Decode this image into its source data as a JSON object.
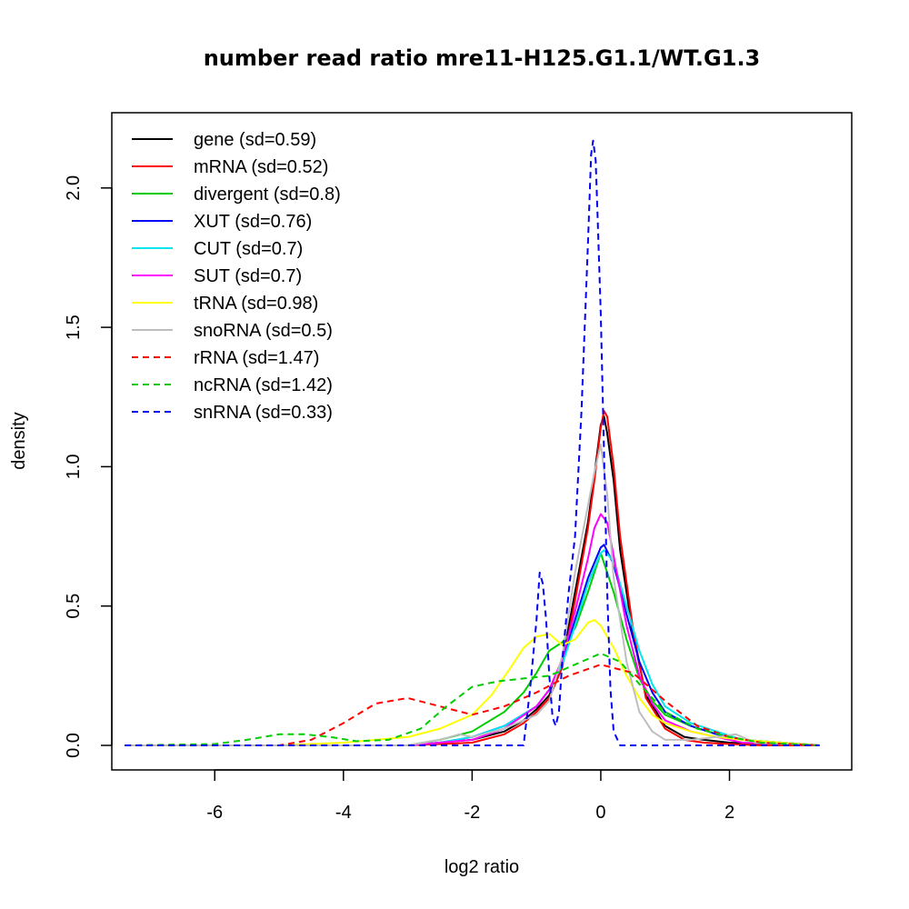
{
  "chart_data": {
    "type": "line",
    "title": "number read ratio mre11-H125.G1.1/WT.G1.3",
    "xlabel": "log2 ratio",
    "ylabel": "density",
    "xlim": [
      -7.6,
      3.9
    ],
    "ylim": [
      -0.088,
      2.27
    ],
    "xticks": [
      -6,
      -4,
      -2,
      0,
      2
    ],
    "xtick_labels": [
      "-6",
      "-4",
      "-2",
      "0",
      "2"
    ],
    "yticks": [
      0.0,
      0.5,
      1.0,
      1.5,
      2.0
    ],
    "ytick_labels": [
      "0.0",
      "0.5",
      "1.0",
      "1.5",
      "2.0"
    ],
    "legend_position": "top-left",
    "series": [
      {
        "name": "gene (sd=0.59)",
        "color": "#000000",
        "dashed": false,
        "x": [
          -7.4,
          -3.0,
          -2.0,
          -1.5,
          -1.2,
          -1.0,
          -0.8,
          -0.6,
          -0.4,
          -0.2,
          -0.1,
          0.0,
          0.05,
          0.1,
          0.2,
          0.3,
          0.5,
          0.7,
          1.0,
          1.3,
          1.6,
          2.0,
          2.5,
          3.4
        ],
        "y": [
          0.0,
          0.0,
          0.02,
          0.05,
          0.09,
          0.13,
          0.18,
          0.3,
          0.55,
          0.8,
          0.97,
          1.15,
          1.18,
          1.12,
          0.95,
          0.7,
          0.4,
          0.18,
          0.07,
          0.03,
          0.02,
          0.01,
          0.005,
          0.0
        ]
      },
      {
        "name": "mRNA (sd=0.52)",
        "color": "#ff0000",
        "dashed": false,
        "x": [
          -7.4,
          -3.0,
          -2.0,
          -1.5,
          -1.2,
          -1.0,
          -0.8,
          -0.6,
          -0.4,
          -0.2,
          -0.1,
          0.0,
          0.05,
          0.1,
          0.2,
          0.3,
          0.5,
          0.7,
          1.0,
          1.3,
          1.6,
          2.0,
          2.5,
          3.4
        ],
        "y": [
          0.0,
          0.0,
          0.01,
          0.04,
          0.08,
          0.12,
          0.17,
          0.28,
          0.52,
          0.78,
          0.95,
          1.14,
          1.2,
          1.18,
          1.0,
          0.75,
          0.42,
          0.17,
          0.06,
          0.02,
          0.01,
          0.005,
          0.0,
          0.0
        ]
      },
      {
        "name": "divergent (sd=0.8)",
        "color": "#00cd00",
        "dashed": false,
        "x": [
          -7.4,
          -3.0,
          -2.5,
          -2.0,
          -1.5,
          -1.2,
          -1.0,
          -0.8,
          -0.6,
          -0.4,
          -0.2,
          0.0,
          0.2,
          0.4,
          0.6,
          0.8,
          1.0,
          1.4,
          1.8,
          2.2,
          3.4
        ],
        "y": [
          0.0,
          0.0,
          0.02,
          0.05,
          0.12,
          0.19,
          0.26,
          0.34,
          0.37,
          0.42,
          0.55,
          0.69,
          0.55,
          0.38,
          0.24,
          0.16,
          0.11,
          0.07,
          0.04,
          0.02,
          0.0
        ]
      },
      {
        "name": "XUT (sd=0.76)",
        "color": "#0000ff",
        "dashed": false,
        "x": [
          -7.4,
          -3.0,
          -2.5,
          -2.0,
          -1.5,
          -1.0,
          -0.8,
          -0.6,
          -0.4,
          -0.2,
          0.0,
          0.05,
          0.2,
          0.4,
          0.6,
          0.8,
          1.0,
          1.4,
          1.8,
          2.2,
          3.4
        ],
        "y": [
          0.0,
          0.0,
          0.01,
          0.03,
          0.07,
          0.14,
          0.2,
          0.3,
          0.45,
          0.6,
          0.71,
          0.72,
          0.65,
          0.47,
          0.3,
          0.19,
          0.12,
          0.07,
          0.04,
          0.02,
          0.0
        ]
      },
      {
        "name": "CUT (sd=0.7)",
        "color": "#00e5ee",
        "dashed": false,
        "x": [
          -7.4,
          -3.0,
          -2.5,
          -2.0,
          -1.5,
          -1.0,
          -0.8,
          -0.6,
          -0.4,
          -0.2,
          0.0,
          0.05,
          0.2,
          0.4,
          0.6,
          0.8,
          1.0,
          1.4,
          1.8,
          2.2,
          3.4
        ],
        "y": [
          0.0,
          0.0,
          0.01,
          0.03,
          0.07,
          0.14,
          0.2,
          0.29,
          0.43,
          0.58,
          0.69,
          0.7,
          0.66,
          0.5,
          0.34,
          0.22,
          0.14,
          0.08,
          0.05,
          0.02,
          0.0
        ]
      },
      {
        "name": "SUT (sd=0.7)",
        "color": "#ff00ff",
        "dashed": false,
        "x": [
          -7.4,
          -3.0,
          -2.5,
          -2.0,
          -1.5,
          -1.0,
          -0.8,
          -0.6,
          -0.4,
          -0.2,
          -0.1,
          0.0,
          0.1,
          0.2,
          0.4,
          0.6,
          0.8,
          1.0,
          1.4,
          1.8,
          2.2,
          3.4
        ],
        "y": [
          0.0,
          0.0,
          0.01,
          0.02,
          0.06,
          0.14,
          0.2,
          0.31,
          0.48,
          0.67,
          0.78,
          0.83,
          0.8,
          0.68,
          0.43,
          0.25,
          0.15,
          0.09,
          0.05,
          0.03,
          0.01,
          0.0
        ]
      },
      {
        "name": "tRNA (sd=0.98)",
        "color": "#ffff00",
        "dashed": false,
        "x": [
          -7.4,
          -5.0,
          -4.0,
          -3.0,
          -2.5,
          -2.0,
          -1.7,
          -1.4,
          -1.2,
          -1.0,
          -0.8,
          -0.6,
          -0.4,
          -0.2,
          -0.1,
          0.0,
          0.2,
          0.4,
          0.6,
          0.8,
          1.0,
          1.4,
          1.8,
          2.2,
          3.4
        ],
        "y": [
          0.0,
          0.0,
          0.01,
          0.03,
          0.06,
          0.11,
          0.18,
          0.28,
          0.35,
          0.39,
          0.4,
          0.36,
          0.38,
          0.44,
          0.45,
          0.43,
          0.35,
          0.25,
          0.17,
          0.11,
          0.08,
          0.05,
          0.03,
          0.02,
          0.0
        ]
      },
      {
        "name": "snoRNA (sd=0.5)",
        "color": "#bebebe",
        "dashed": false,
        "x": [
          -7.4,
          -3.0,
          -2.5,
          -2.2,
          -2.0,
          -1.5,
          -1.0,
          -0.8,
          -0.6,
          -0.4,
          -0.2,
          -0.1,
          0.0,
          0.1,
          0.2,
          0.4,
          0.6,
          0.8,
          1.0,
          1.4,
          1.8,
          2.1,
          2.4,
          3.4
        ],
        "y": [
          0.0,
          0.0,
          0.02,
          0.04,
          0.03,
          0.06,
          0.11,
          0.16,
          0.32,
          0.62,
          0.86,
          0.98,
          1.08,
          0.9,
          0.6,
          0.3,
          0.12,
          0.05,
          0.02,
          0.02,
          0.03,
          0.04,
          0.01,
          0.0
        ]
      },
      {
        "name": "rRNA (sd=1.47)",
        "color": "#ff0000",
        "dashed": true,
        "x": [
          -7.4,
          -5.0,
          -4.5,
          -4.0,
          -3.5,
          -3.0,
          -2.5,
          -2.0,
          -1.5,
          -1.0,
          -0.5,
          0.0,
          0.5,
          1.0,
          1.5,
          2.0,
          2.5,
          3.4
        ],
        "y": [
          0.0,
          0.0,
          0.02,
          0.08,
          0.15,
          0.17,
          0.14,
          0.11,
          0.14,
          0.19,
          0.25,
          0.29,
          0.26,
          0.16,
          0.07,
          0.03,
          0.01,
          0.0
        ]
      },
      {
        "name": "ncRNA (sd=1.42)",
        "color": "#00cd00",
        "dashed": true,
        "x": [
          -7.4,
          -6.0,
          -5.5,
          -5.0,
          -4.6,
          -4.2,
          -3.8,
          -3.3,
          -2.8,
          -2.4,
          -2.0,
          -1.6,
          -1.2,
          -0.8,
          -0.4,
          0.0,
          0.3,
          0.6,
          1.0,
          1.5,
          2.0,
          2.5,
          3.4
        ],
        "y": [
          0.0,
          0.005,
          0.02,
          0.04,
          0.04,
          0.03,
          0.015,
          0.02,
          0.06,
          0.14,
          0.21,
          0.23,
          0.24,
          0.25,
          0.29,
          0.33,
          0.3,
          0.22,
          0.12,
          0.06,
          0.03,
          0.01,
          0.0
        ]
      },
      {
        "name": "snRNA (sd=0.33)",
        "color": "#0000ff",
        "dashed": true,
        "x": [
          -7.4,
          -1.2,
          -1.1,
          -1.0,
          -0.95,
          -0.9,
          -0.85,
          -0.8,
          -0.75,
          -0.7,
          -0.65,
          -0.6,
          -0.5,
          -0.4,
          -0.3,
          -0.2,
          -0.15,
          -0.12,
          -0.08,
          -0.05,
          0.0,
          0.05,
          0.1,
          0.15,
          0.2,
          0.3,
          3.4
        ],
        "y": [
          0.0,
          0.0,
          0.2,
          0.45,
          0.62,
          0.58,
          0.45,
          0.25,
          0.1,
          0.07,
          0.12,
          0.3,
          0.55,
          0.75,
          1.2,
          1.8,
          2.12,
          2.17,
          2.1,
          1.9,
          1.55,
          1.05,
          0.55,
          0.2,
          0.05,
          0.0,
          0.0
        ]
      }
    ]
  }
}
